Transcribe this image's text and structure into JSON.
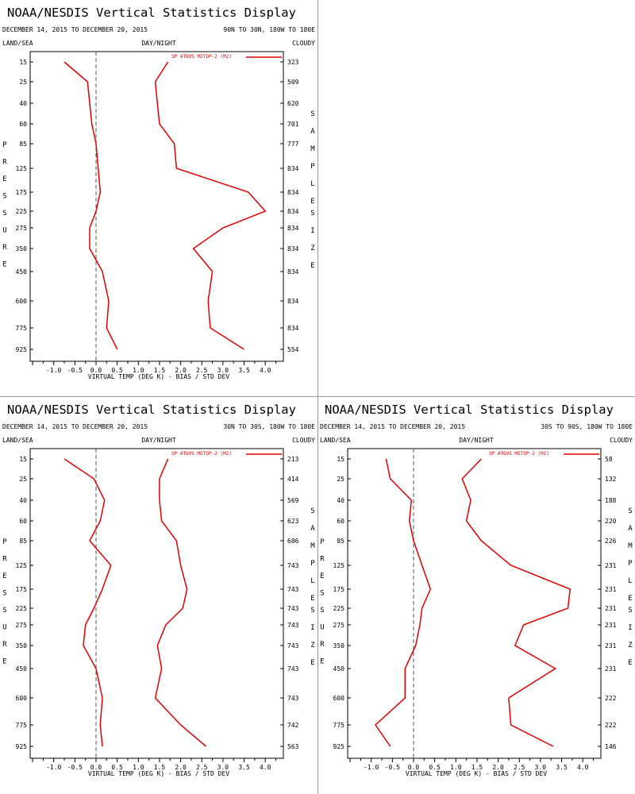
{
  "colors": {
    "series": "#e00000",
    "axis": "#000000",
    "zero_line": "#555555",
    "divider": "#9a9a9a"
  },
  "chart_data": [
    {
      "type": "line",
      "title": "NOAA/NESDIS Vertical Statistics Display",
      "date_range": "DECEMBER 14, 2015 TO DECEMBER 20, 2015",
      "region": "90N TO 30N, 180W TO 180E",
      "left_header": "LAND/SEA",
      "center_header": "DAY/NIGHT",
      "right_header": "CLOUDY",
      "ylabel_left": "PRESSURE",
      "ylabel_right": "SAMPLE SIZE",
      "xlabel": "VIRTUAL TEMP (DEG K) - BIAS / STD DEV",
      "legend": "SP ATOVS METOP-2 (M2)",
      "xlim": [
        -1.5,
        4.5
      ],
      "xticks": [
        "-1.0",
        "-0.5",
        "0.0",
        "0.5",
        "1.0",
        "1.5",
        "2.0",
        "2.5",
        "3.0",
        "3.5",
        "4.0"
      ],
      "pressure_levels": [
        "15",
        "25",
        "40",
        "60",
        "85",
        "125",
        "175",
        "225",
        "275",
        "350",
        "450",
        "600",
        "775",
        "925"
      ],
      "sample_size": [
        "323",
        "509",
        "620",
        "701",
        "777",
        "834",
        "834",
        "834",
        "834",
        "834",
        "834",
        "834",
        "834",
        "554"
      ],
      "series": [
        {
          "values": [
            -0.75,
            -0.2,
            -0.15,
            -0.1,
            0.0,
            0.05,
            0.1,
            0.0,
            -0.15,
            -0.15,
            0.15,
            0.3,
            0.25,
            0.5
          ]
        },
        {
          "values": [
            1.7,
            1.4,
            1.45,
            1.5,
            1.85,
            1.9,
            3.6,
            4.0,
            3.0,
            2.3,
            2.75,
            2.65,
            2.7,
            3.5
          ]
        }
      ]
    },
    {
      "type": "line",
      "title": "NOAA/NESDIS Vertical Statistics Display",
      "date_range": "DECEMBER 14, 2015 TO DECEMBER 20, 2015",
      "region": "30N TO 30S, 180W TO 180E",
      "left_header": "LAND/SEA",
      "center_header": "DAY/NIGHT",
      "right_header": "CLOUDY",
      "ylabel_left": "PRESSURE",
      "ylabel_right": "SAMPLE SIZE",
      "xlabel": "VIRTUAL TEMP (DEG K) - BIAS / STD DEV",
      "legend": "SP ATOVS METOP-2 (M2)",
      "xlim": [
        -1.5,
        4.5
      ],
      "xticks": [
        "-1.0",
        "-0.5",
        "0.0",
        "0.5",
        "1.0",
        "1.5",
        "2.0",
        "2.5",
        "3.0",
        "3.5",
        "4.0"
      ],
      "pressure_levels": [
        "15",
        "25",
        "40",
        "60",
        "85",
        "125",
        "175",
        "225",
        "275",
        "350",
        "450",
        "600",
        "775",
        "925"
      ],
      "sample_size": [
        "213",
        "414",
        "569",
        "623",
        "686",
        "743",
        "743",
        "743",
        "743",
        "743",
        "743",
        "743",
        "742",
        "563"
      ],
      "series": [
        {
          "values": [
            -0.75,
            -0.05,
            0.2,
            0.1,
            -0.15,
            0.35,
            0.15,
            -0.05,
            -0.25,
            -0.3,
            0.0,
            0.15,
            0.1,
            0.15
          ]
        },
        {
          "values": [
            1.7,
            1.5,
            1.5,
            1.55,
            1.9,
            2.0,
            2.15,
            2.05,
            1.65,
            1.45,
            1.55,
            1.4,
            2.0,
            2.6
          ]
        }
      ]
    },
    {
      "type": "line",
      "title": "NOAA/NESDIS Vertical Statistics Display",
      "date_range": "DECEMBER 14, 2015 TO DECEMBER 20, 2015",
      "region": "30S TO 90S, 180W TO 180E",
      "left_header": "LAND/SEA",
      "center_header": "DAY/NIGHT",
      "right_header": "CLOUDY",
      "ylabel_left": "PRESSURE",
      "ylabel_right": "SAMPLE SIZE",
      "xlabel": "VIRTUAL TEMP (DEG K) - BIAS / STD DEV",
      "legend": "SP ATOVS METOP-2 (M2)",
      "xlim": [
        -1.5,
        4.5
      ],
      "xticks": [
        "-1.0",
        "-0.5",
        "0.0",
        "0.5",
        "1.0",
        "1.5",
        "2.0",
        "2.5",
        "3.0",
        "3.5",
        "4.0"
      ],
      "pressure_levels": [
        "15",
        "25",
        "40",
        "60",
        "85",
        "125",
        "175",
        "225",
        "275",
        "350",
        "450",
        "600",
        "775",
        "925"
      ],
      "sample_size": [
        "58",
        "132",
        "188",
        "220",
        "226",
        "231",
        "231",
        "231",
        "231",
        "231",
        "231",
        "222",
        "222",
        "146"
      ],
      "series": [
        {
          "values": [
            -0.65,
            -0.55,
            -0.05,
            -0.1,
            0.0,
            0.2,
            0.4,
            0.2,
            0.15,
            0.05,
            -0.2,
            -0.2,
            -0.9,
            -0.55
          ]
        },
        {
          "values": [
            1.6,
            1.15,
            1.35,
            1.25,
            1.6,
            2.3,
            3.7,
            3.65,
            2.6,
            2.4,
            3.35,
            2.25,
            2.3,
            3.3
          ]
        }
      ]
    }
  ]
}
